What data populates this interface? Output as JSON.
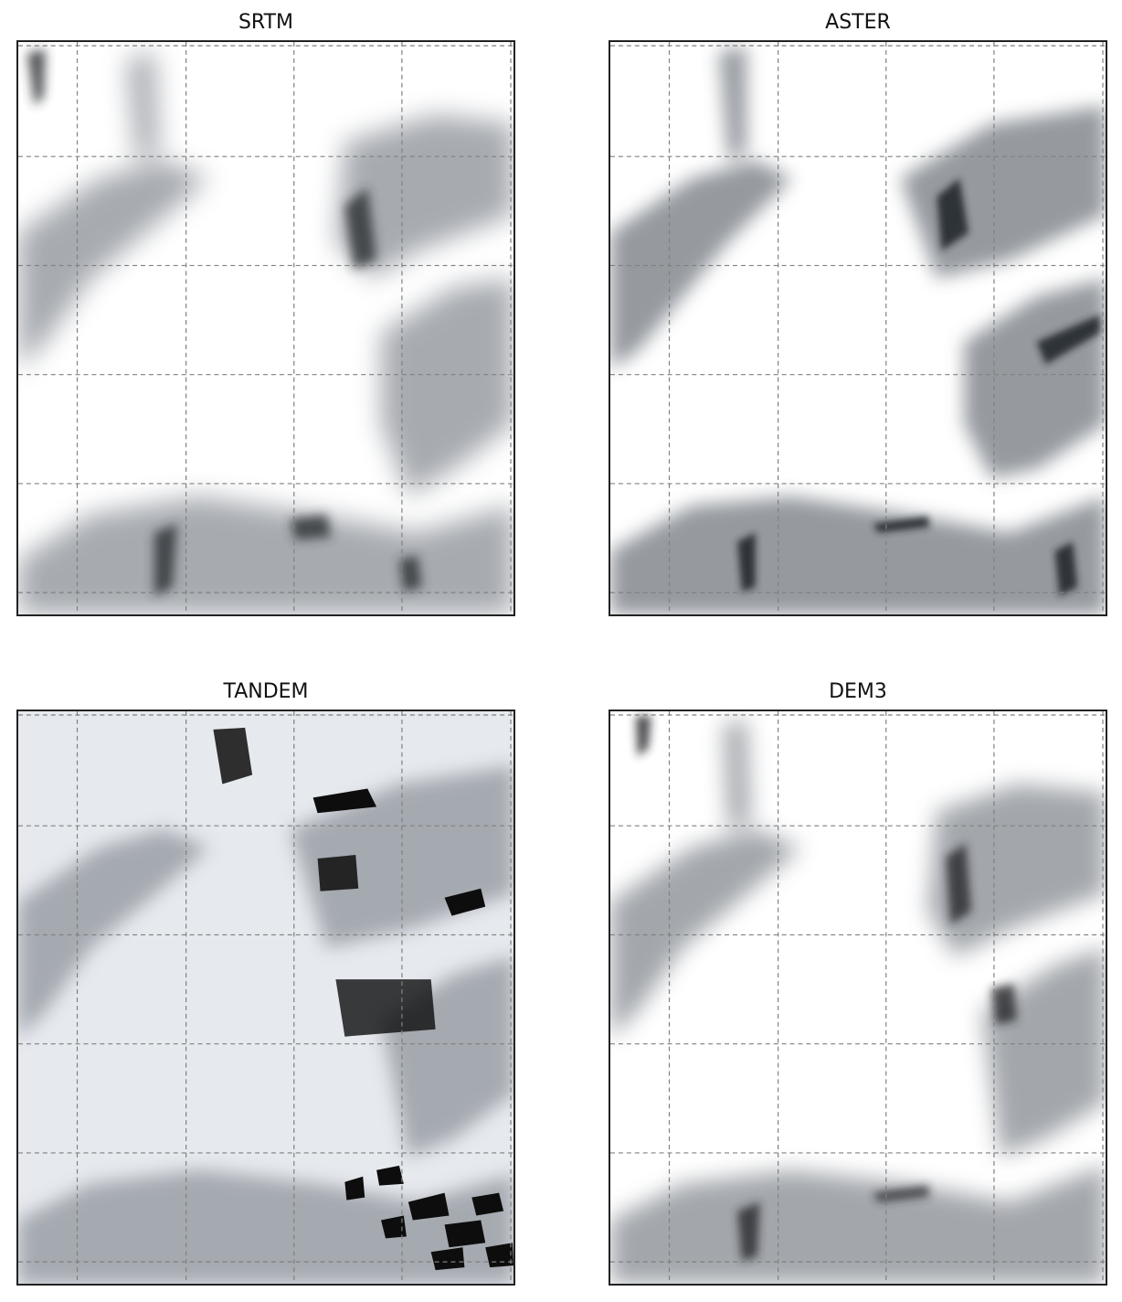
{
  "panels": [
    {
      "id": "srtm",
      "title": "SRTM"
    },
    {
      "id": "aster",
      "title": "ASTER"
    },
    {
      "id": "tandem",
      "title": "TANDEM"
    },
    {
      "id": "dem3",
      "title": "DEM3"
    }
  ],
  "colors": {
    "frame": "#222222",
    "grid": "#808080",
    "shade_dark": "#1a1a1a",
    "shade_mid": "#8a8f96",
    "tandem_background": "#e6e9ee"
  }
}
